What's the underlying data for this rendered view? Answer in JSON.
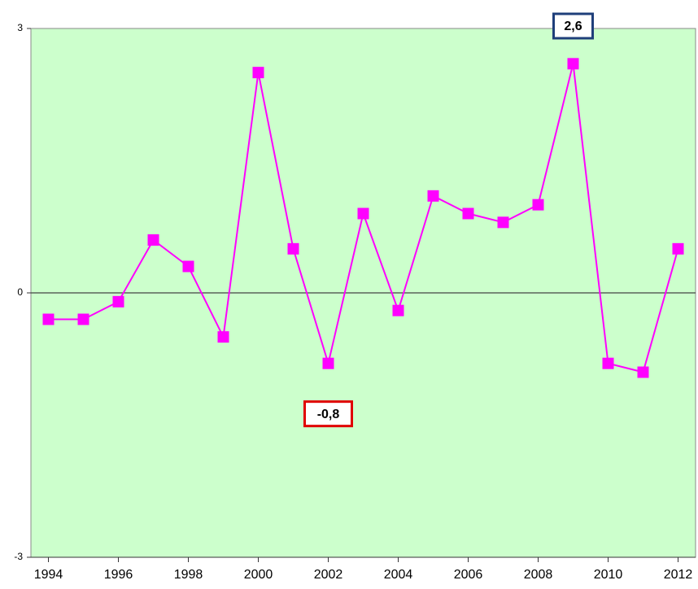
{
  "chart_data": {
    "type": "line",
    "x": [
      1994,
      1995,
      1996,
      1997,
      1998,
      1999,
      2000,
      2001,
      2002,
      2003,
      2004,
      2005,
      2006,
      2007,
      2008,
      2009,
      2010,
      2011,
      2012
    ],
    "series": [
      {
        "name": null,
        "color": "#ff00ff",
        "values": [
          -0.3,
          -0.3,
          -0.1,
          0.6,
          0.3,
          -0.5,
          2.5,
          0.5,
          -0.8,
          0.9,
          -0.2,
          1.1,
          0.9,
          0.8,
          1.0,
          2.6,
          -0.8,
          -0.9,
          0.5
        ]
      }
    ],
    "xlim": [
      1993.5,
      2012.5
    ],
    "xticks": [
      1994,
      1996,
      1998,
      2000,
      2002,
      2004,
      2006,
      2008,
      2010,
      2012
    ],
    "ylim": [
      -3,
      3
    ],
    "yticks": [
      -3,
      0,
      3
    ],
    "plot_background": "#ccffcc",
    "annotations": [
      {
        "text": "2,6",
        "x": 2009,
        "color": "#1f3f7a",
        "position": "top"
      },
      {
        "text": "-0,8",
        "x": 2002,
        "color": "#e00000",
        "position": "below"
      }
    ]
  }
}
